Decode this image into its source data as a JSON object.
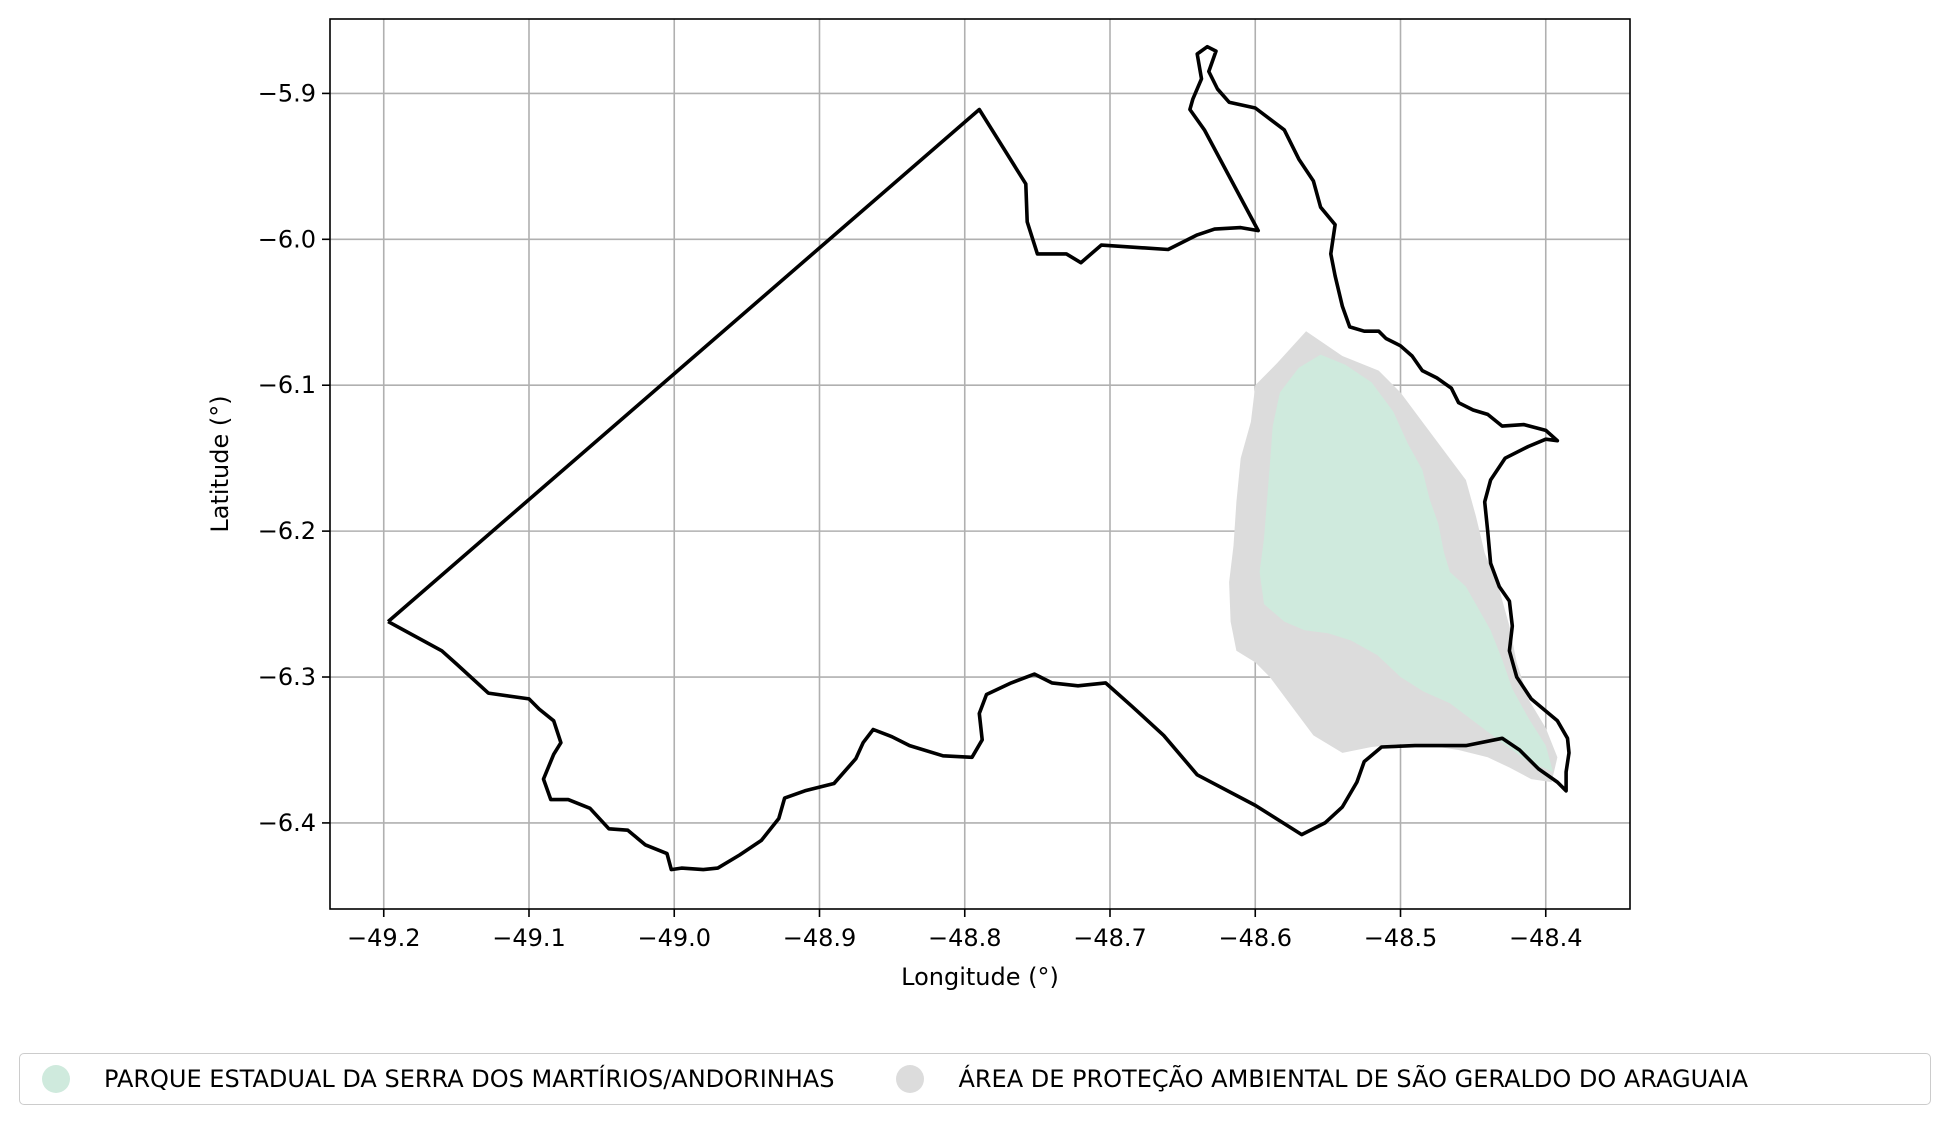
{
  "chart_data": {
    "type": "map",
    "xlabel": "Longitude (°)",
    "ylabel": "Latitude (°)",
    "xlim": [
      -49.237,
      -48.342
    ],
    "ylim": [
      -6.459,
      -5.849
    ],
    "xticks": [
      -49.2,
      -49.1,
      -49.0,
      -48.9,
      -48.8,
      -48.7,
      -48.6,
      -48.5,
      -48.4
    ],
    "yticks": [
      -5.9,
      -6.0,
      -6.1,
      -6.2,
      -6.3,
      -6.4
    ],
    "xtick_labels": [
      "−49.2",
      "−49.1",
      "−49.0",
      "−48.9",
      "−48.8",
      "−48.7",
      "−48.6",
      "−48.5",
      "−48.4"
    ],
    "ytick_labels": [
      "−5.9",
      "−6.0",
      "−6.1",
      "−6.2",
      "−6.3",
      "−6.4"
    ],
    "grid": true,
    "legend_position": "bottom-center",
    "layers": [
      {
        "name": "ÁREA DE PROTEÇÃO AMBIENTAL DE SÃO GERALDO DO ARAGUAIA",
        "color": "#dcdcdc",
        "coords": [
          [
            -48.565,
            -6.063
          ],
          [
            -48.54,
            -6.08
          ],
          [
            -48.515,
            -6.09
          ],
          [
            -48.5,
            -6.105
          ],
          [
            -48.485,
            -6.125
          ],
          [
            -48.47,
            -6.145
          ],
          [
            -48.455,
            -6.165
          ],
          [
            -48.448,
            -6.19
          ],
          [
            -48.442,
            -6.215
          ],
          [
            -48.432,
            -6.24
          ],
          [
            -48.425,
            -6.265
          ],
          [
            -48.42,
            -6.29
          ],
          [
            -48.412,
            -6.315
          ],
          [
            -48.4,
            -6.335
          ],
          [
            -48.392,
            -6.355
          ],
          [
            -48.396,
            -6.372
          ],
          [
            -48.41,
            -6.37
          ],
          [
            -48.425,
            -6.362
          ],
          [
            -48.44,
            -6.355
          ],
          [
            -48.46,
            -6.35
          ],
          [
            -48.48,
            -6.347
          ],
          [
            -48.5,
            -6.346
          ],
          [
            -48.52,
            -6.348
          ],
          [
            -48.54,
            -6.352
          ],
          [
            -48.56,
            -6.34
          ],
          [
            -48.575,
            -6.32
          ],
          [
            -48.59,
            -6.3
          ],
          [
            -48.6,
            -6.29
          ],
          [
            -48.613,
            -6.282
          ],
          [
            -48.617,
            -6.262
          ],
          [
            -48.618,
            -6.235
          ],
          [
            -48.615,
            -6.21
          ],
          [
            -48.613,
            -6.18
          ],
          [
            -48.61,
            -6.15
          ],
          [
            -48.603,
            -6.125
          ],
          [
            -48.6,
            -6.1
          ],
          [
            -48.585,
            -6.085
          ]
        ]
      },
      {
        "name": "PARQUE ESTADUAL DA SERRA DOS MARTÍRIOS/ANDORINHAS",
        "color": "#cfeadd",
        "coords": [
          [
            -48.555,
            -6.079
          ],
          [
            -48.538,
            -6.086
          ],
          [
            -48.52,
            -6.098
          ],
          [
            -48.505,
            -6.118
          ],
          [
            -48.495,
            -6.14
          ],
          [
            -48.485,
            -6.158
          ],
          [
            -48.48,
            -6.178
          ],
          [
            -48.474,
            -6.195
          ],
          [
            -48.47,
            -6.215
          ],
          [
            -48.466,
            -6.228
          ],
          [
            -48.455,
            -6.238
          ],
          [
            -48.447,
            -6.252
          ],
          [
            -48.438,
            -6.268
          ],
          [
            -48.43,
            -6.288
          ],
          [
            -48.423,
            -6.308
          ],
          [
            -48.412,
            -6.328
          ],
          [
            -48.4,
            -6.347
          ],
          [
            -48.395,
            -6.365
          ],
          [
            -48.412,
            -6.358
          ],
          [
            -48.43,
            -6.345
          ],
          [
            -48.45,
            -6.33
          ],
          [
            -48.466,
            -6.318
          ],
          [
            -48.484,
            -6.31
          ],
          [
            -48.5,
            -6.3
          ],
          [
            -48.516,
            -6.285
          ],
          [
            -48.534,
            -6.275
          ],
          [
            -48.55,
            -6.27
          ],
          [
            -48.566,
            -6.268
          ],
          [
            -48.58,
            -6.262
          ],
          [
            -48.594,
            -6.25
          ],
          [
            -48.597,
            -6.228
          ],
          [
            -48.594,
            -6.205
          ],
          [
            -48.592,
            -6.18
          ],
          [
            -48.59,
            -6.155
          ],
          [
            -48.588,
            -6.128
          ],
          [
            -48.583,
            -6.105
          ],
          [
            -48.57,
            -6.088
          ]
        ]
      },
      {
        "name": "municipal boundary",
        "color": "#000000",
        "coords": [
          [
            -49.197,
            -6.262
          ],
          [
            -49.16,
            -6.282
          ],
          [
            -49.15,
            -6.291
          ],
          [
            -49.128,
            -6.311
          ],
          [
            -49.1,
            -6.315
          ],
          [
            -49.093,
            -6.322
          ],
          [
            -49.083,
            -6.33
          ],
          [
            -49.078,
            -6.345
          ],
          [
            -49.083,
            -6.353
          ],
          [
            -49.09,
            -6.37
          ],
          [
            -49.085,
            -6.384
          ],
          [
            -49.073,
            -6.384
          ],
          [
            -49.058,
            -6.39
          ],
          [
            -49.045,
            -6.404
          ],
          [
            -49.032,
            -6.405
          ],
          [
            -49.02,
            -6.415
          ],
          [
            -49.005,
            -6.421
          ],
          [
            -49.002,
            -6.432
          ],
          [
            -48.995,
            -6.431
          ],
          [
            -48.98,
            -6.432
          ],
          [
            -48.97,
            -6.431
          ],
          [
            -48.955,
            -6.422
          ],
          [
            -48.94,
            -6.412
          ],
          [
            -48.928,
            -6.397
          ],
          [
            -48.924,
            -6.383
          ],
          [
            -48.91,
            -6.378
          ],
          [
            -48.89,
            -6.373
          ],
          [
            -48.875,
            -6.356
          ],
          [
            -48.87,
            -6.345
          ],
          [
            -48.863,
            -6.336
          ],
          [
            -48.85,
            -6.341
          ],
          [
            -48.838,
            -6.347
          ],
          [
            -48.815,
            -6.354
          ],
          [
            -48.795,
            -6.355
          ],
          [
            -48.788,
            -6.343
          ],
          [
            -48.79,
            -6.325
          ],
          [
            -48.785,
            -6.312
          ],
          [
            -48.768,
            -6.304
          ],
          [
            -48.752,
            -6.298
          ],
          [
            -48.74,
            -6.304
          ],
          [
            -48.722,
            -6.306
          ],
          [
            -48.703,
            -6.304
          ],
          [
            -48.685,
            -6.32
          ],
          [
            -48.663,
            -6.34
          ],
          [
            -48.64,
            -6.367
          ],
          [
            -48.6,
            -6.388
          ],
          [
            -48.568,
            -6.408
          ],
          [
            -48.552,
            -6.4
          ],
          [
            -48.54,
            -6.389
          ],
          [
            -48.53,
            -6.372
          ],
          [
            -48.525,
            -6.358
          ],
          [
            -48.513,
            -6.348
          ],
          [
            -48.49,
            -6.347
          ],
          [
            -48.455,
            -6.347
          ],
          [
            -48.43,
            -6.342
          ],
          [
            -48.418,
            -6.35
          ],
          [
            -48.405,
            -6.363
          ],
          [
            -48.392,
            -6.372
          ],
          [
            -48.386,
            -6.378
          ],
          [
            -48.386,
            -6.365
          ],
          [
            -48.384,
            -6.352
          ],
          [
            -48.385,
            -6.342
          ],
          [
            -48.392,
            -6.33
          ],
          [
            -48.41,
            -6.315
          ],
          [
            -48.42,
            -6.3
          ],
          [
            -48.425,
            -6.282
          ],
          [
            -48.423,
            -6.265
          ],
          [
            -48.425,
            -6.248
          ],
          [
            -48.432,
            -6.238
          ],
          [
            -48.438,
            -6.222
          ],
          [
            -48.44,
            -6.2
          ],
          [
            -48.442,
            -6.18
          ],
          [
            -48.438,
            -6.165
          ],
          [
            -48.428,
            -6.15
          ],
          [
            -48.412,
            -6.142
          ],
          [
            -48.4,
            -6.137
          ],
          [
            -48.392,
            -6.138
          ],
          [
            -48.4,
            -6.131
          ],
          [
            -48.415,
            -6.127
          ],
          [
            -48.43,
            -6.128
          ],
          [
            -48.44,
            -6.12
          ],
          [
            -48.45,
            -6.117
          ],
          [
            -48.46,
            -6.112
          ],
          [
            -48.465,
            -6.102
          ],
          [
            -48.475,
            -6.095
          ],
          [
            -48.485,
            -6.09
          ],
          [
            -48.492,
            -6.08
          ],
          [
            -48.5,
            -6.073
          ],
          [
            -48.51,
            -6.068
          ],
          [
            -48.515,
            -6.063
          ],
          [
            -48.525,
            -6.063
          ],
          [
            -48.535,
            -6.06
          ],
          [
            -48.54,
            -6.046
          ],
          [
            -48.545,
            -6.025
          ],
          [
            -48.548,
            -6.01
          ],
          [
            -48.545,
            -5.99
          ],
          [
            -48.555,
            -5.978
          ],
          [
            -48.56,
            -5.96
          ],
          [
            -48.57,
            -5.945
          ],
          [
            -48.58,
            -5.925
          ],
          [
            -48.6,
            -5.91
          ],
          [
            -48.618,
            -5.906
          ],
          [
            -48.626,
            -5.897
          ],
          [
            -48.632,
            -5.885
          ],
          [
            -48.627,
            -5.871
          ],
          [
            -48.633,
            -5.868
          ],
          [
            -48.64,
            -5.873
          ],
          [
            -48.637,
            -5.89
          ],
          [
            -48.643,
            -5.904
          ],
          [
            -48.645,
            -5.911
          ],
          [
            -48.635,
            -5.925
          ],
          [
            -48.598,
            -5.994
          ],
          [
            -48.61,
            -5.992
          ],
          [
            -48.628,
            -5.993
          ],
          [
            -48.64,
            -5.997
          ],
          [
            -48.66,
            -6.007
          ],
          [
            -48.706,
            -6.004
          ],
          [
            -48.72,
            -6.016
          ],
          [
            -48.73,
            -6.01
          ],
          [
            -48.75,
            -6.01
          ],
          [
            -48.757,
            -5.988
          ],
          [
            -48.758,
            -5.962
          ],
          [
            -48.79,
            -5.911
          ],
          [
            -49.197,
            -6.262
          ]
        ]
      }
    ]
  },
  "legend": {
    "items": [
      {
        "label": "PARQUE ESTADUAL DA SERRA DOS MARTÍRIOS/ANDORINHAS",
        "color": "#cfeadd"
      },
      {
        "label": "ÁREA DE PROTEÇÃO AMBIENTAL DE SÃO GERALDO DO ARAGUAIA",
        "color": "#dcdcdc"
      }
    ]
  }
}
